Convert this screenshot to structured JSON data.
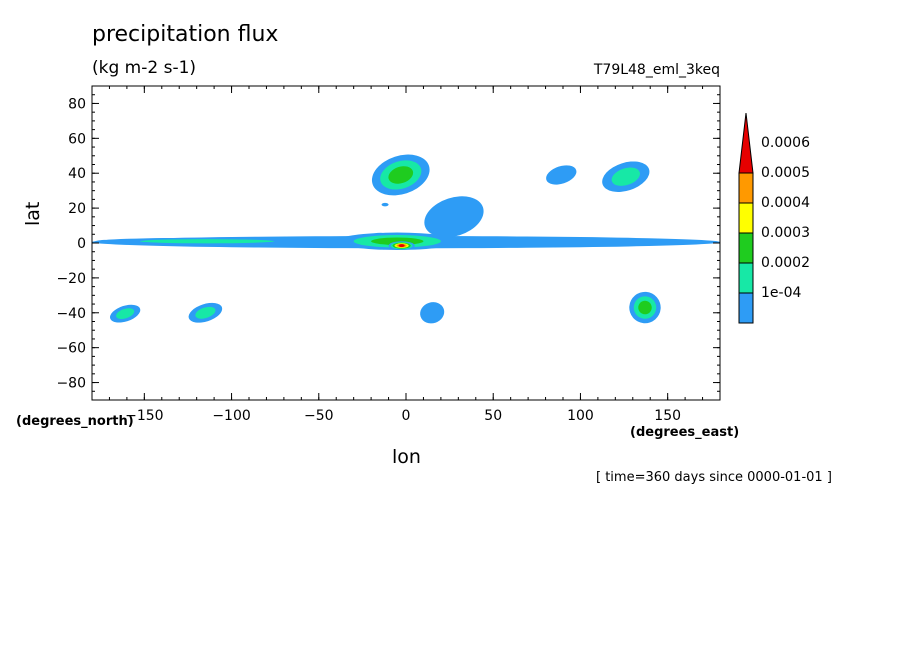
{
  "chart_data": {
    "type": "heatmap",
    "title": "precipitation flux",
    "units": "(kg m-2 s-1)",
    "run_label": "T79L48_eml_3keq",
    "xlabel": "lon",
    "ylabel": "lat",
    "x_unit_label": "(degrees_east)",
    "y_unit_label": "(degrees_north)",
    "time_label": "[ time=360 days since 0000-01-01 ]",
    "xlim": [
      -180,
      180
    ],
    "ylim": [
      -90,
      90
    ],
    "x_ticks": [
      -150,
      -100,
      -50,
      0,
      50,
      100,
      150
    ],
    "y_ticks": [
      -80,
      -60,
      -40,
      -20,
      0,
      20,
      40,
      60,
      80
    ],
    "x_tick_labels": [
      "−150",
      "−100",
      "−50",
      "0",
      "50",
      "100",
      "150"
    ],
    "y_tick_labels": [
      "−80",
      "−60",
      "−40",
      "−20",
      "0",
      "20",
      "40",
      "60",
      "80"
    ],
    "colorbar": {
      "levels": [
        0.0001,
        0.0002,
        0.0003,
        0.0004,
        0.0005,
        0.0006
      ],
      "labels": [
        "1e-04",
        "0.0002",
        "0.0003",
        "0.0004",
        "0.0005",
        "0.0006"
      ],
      "colors": [
        "#2e9cf5",
        "#17e8a6",
        "#1fcc1f",
        "#ffff00",
        "#ff9900",
        "#e60000"
      ],
      "extend": "max"
    },
    "features": [
      {
        "kind": "itcz_band",
        "lon": [
          -180,
          180
        ],
        "lat": [
          -3,
          4
        ],
        "level": 1
      },
      {
        "kind": "itcz_core",
        "lon": [
          -178,
          -50
        ],
        "lat": [
          -1,
          3
        ],
        "level": 2
      },
      {
        "kind": "itcz_core",
        "lon": [
          -40,
          30
        ],
        "lat": [
          -4,
          6
        ],
        "level": 3
      },
      {
        "kind": "max",
        "lon": [
          -10,
          5
        ],
        "lat": [
          -4,
          1
        ],
        "level": 6
      },
      {
        "kind": "tongue",
        "lon": [
          10,
          45
        ],
        "lat": [
          4,
          26
        ],
        "level": 1
      },
      {
        "kind": "blob",
        "lon": -12,
        "lat": 22,
        "level": 1
      },
      {
        "kind": "streak",
        "lon": [
          -20,
          14
        ],
        "lat": [
          28,
          50
        ],
        "level": 3
      },
      {
        "kind": "streak",
        "lon": [
          112,
          140
        ],
        "lat": [
          30,
          46
        ],
        "level": 2
      },
      {
        "kind": "streak",
        "lon": [
          80,
          98
        ],
        "lat": [
          34,
          44
        ],
        "level": 1
      },
      {
        "kind": "streak",
        "lon": [
          -170,
          -152
        ],
        "lat": [
          -45,
          -36
        ],
        "level": 2
      },
      {
        "kind": "streak",
        "lon": [
          -125,
          -105
        ],
        "lat": [
          -45,
          -35
        ],
        "level": 2
      },
      {
        "kind": "streak",
        "lon": [
          128,
          146
        ],
        "lat": [
          -46,
          -28
        ],
        "level": 3
      },
      {
        "kind": "streak",
        "lon": [
          8,
          22
        ],
        "lat": [
          -46,
          -34
        ],
        "level": 1
      }
    ]
  }
}
